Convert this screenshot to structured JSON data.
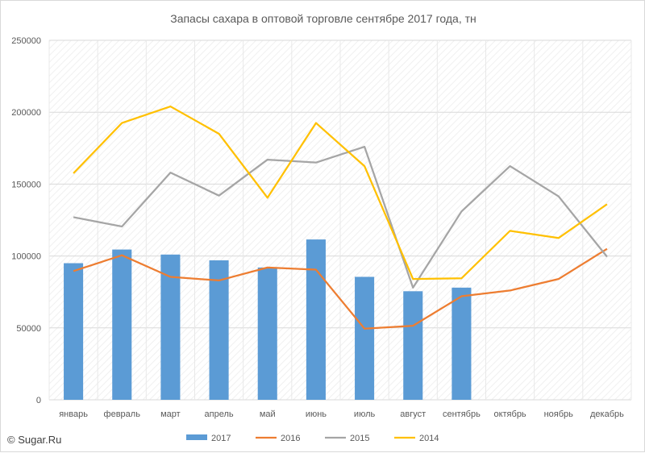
{
  "chart_data": {
    "type": "bar",
    "title": "Запасы сахара в оптовой торговле сентябре 2017 года, тн",
    "categories": [
      "январь",
      "февраль",
      "март",
      "апрель",
      "май",
      "июнь",
      "июль",
      "август",
      "сентябрь",
      "октябрь",
      "ноябрь",
      "декабрь"
    ],
    "ylim": [
      0,
      250000
    ],
    "yticks": [
      "0",
      "50000",
      "100000",
      "150000",
      "200000",
      "250000"
    ],
    "grid": true,
    "legend_position": "bottom",
    "series": [
      {
        "name": "2017",
        "type": "bar",
        "color": "#5b9bd5",
        "values": [
          95000,
          104500,
          101000,
          97000,
          92000,
          111500,
          85500,
          75500,
          78000,
          null,
          null,
          null
        ]
      },
      {
        "name": "2016",
        "type": "line",
        "color": "#ed7d31",
        "values": [
          89500,
          100500,
          85500,
          83000,
          92000,
          90500,
          49500,
          51500,
          72000,
          76000,
          84000,
          105000
        ]
      },
      {
        "name": "2015",
        "type": "line",
        "color": "#a5a5a5",
        "values": [
          127000,
          120500,
          158000,
          142000,
          167000,
          165000,
          176000,
          78000,
          131000,
          162500,
          141500,
          99500
        ]
      },
      {
        "name": "2014",
        "type": "line",
        "color": "#ffc000",
        "values": [
          157500,
          192500,
          204000,
          185000,
          140500,
          192500,
          162500,
          84000,
          84500,
          117500,
          112500,
          136000
        ]
      }
    ]
  },
  "copyright": "© Sugar.Ru"
}
